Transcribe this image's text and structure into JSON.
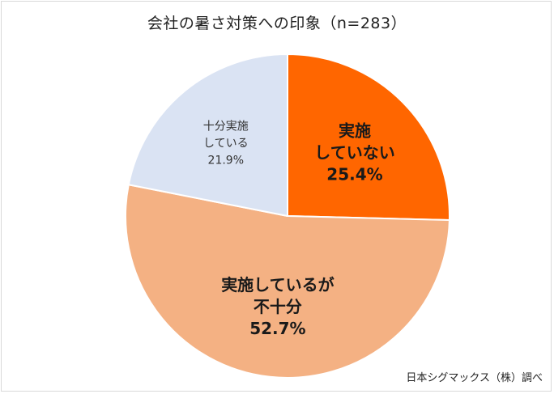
{
  "chart_data": {
    "type": "pie",
    "title": "会社の暑さ対策への印象（n=283）",
    "source": "日本シグマックス（株）調べ",
    "slices": [
      {
        "label_lines": [
          "実施",
          "していない"
        ],
        "value": 25.4,
        "value_label": "25.4%",
        "color": "#FF6600"
      },
      {
        "label_lines": [
          "実施しているが",
          "不十分"
        ],
        "value": 52.7,
        "value_label": "52.7%",
        "color": "#F4B183"
      },
      {
        "label_lines": [
          "十分実施",
          "している"
        ],
        "value": 21.9,
        "value_label": "21.9%",
        "color": "#DAE3F3"
      }
    ]
  }
}
